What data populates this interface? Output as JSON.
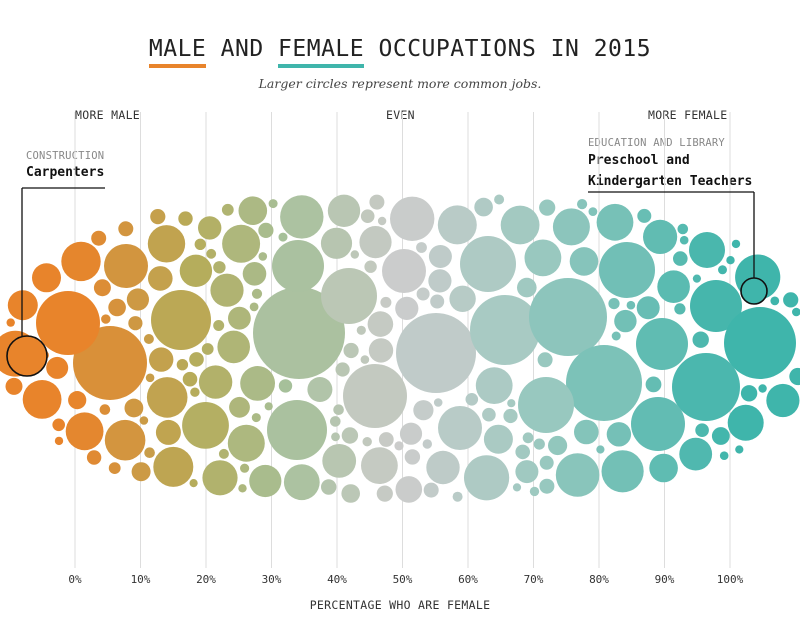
{
  "chart_data": {
    "type": "bubble",
    "title_parts": [
      "MALE",
      "AND",
      "FEMALE",
      "OCCUPATIONS IN 2015"
    ],
    "subtitle": "Larger circles represent more common jobs.",
    "direction_labels": {
      "left": "MORE MALE",
      "center": "EVEN",
      "right": "MORE FEMALE"
    },
    "xlabel": "PERCENTAGE WHO ARE FEMALE",
    "x_ticks": [
      "0%",
      "10%",
      "20%",
      "30%",
      "40%",
      "50%",
      "60%",
      "70%",
      "80%",
      "90%",
      "100%"
    ],
    "xlim": [
      0,
      100
    ],
    "colors": {
      "male": "#e8842b",
      "even": "#cccccc",
      "female": "#3fb5ab"
    },
    "annotations": [
      {
        "category": "CONSTRUCTION",
        "label": "Carpenters",
        "percent_female": -6
      },
      {
        "category": "EDUCATION AND LIBRARY",
        "label_lines": [
          "Preschool and",
          "Kindergarten Teachers"
        ],
        "percent_female": 102
      }
    ]
  }
}
